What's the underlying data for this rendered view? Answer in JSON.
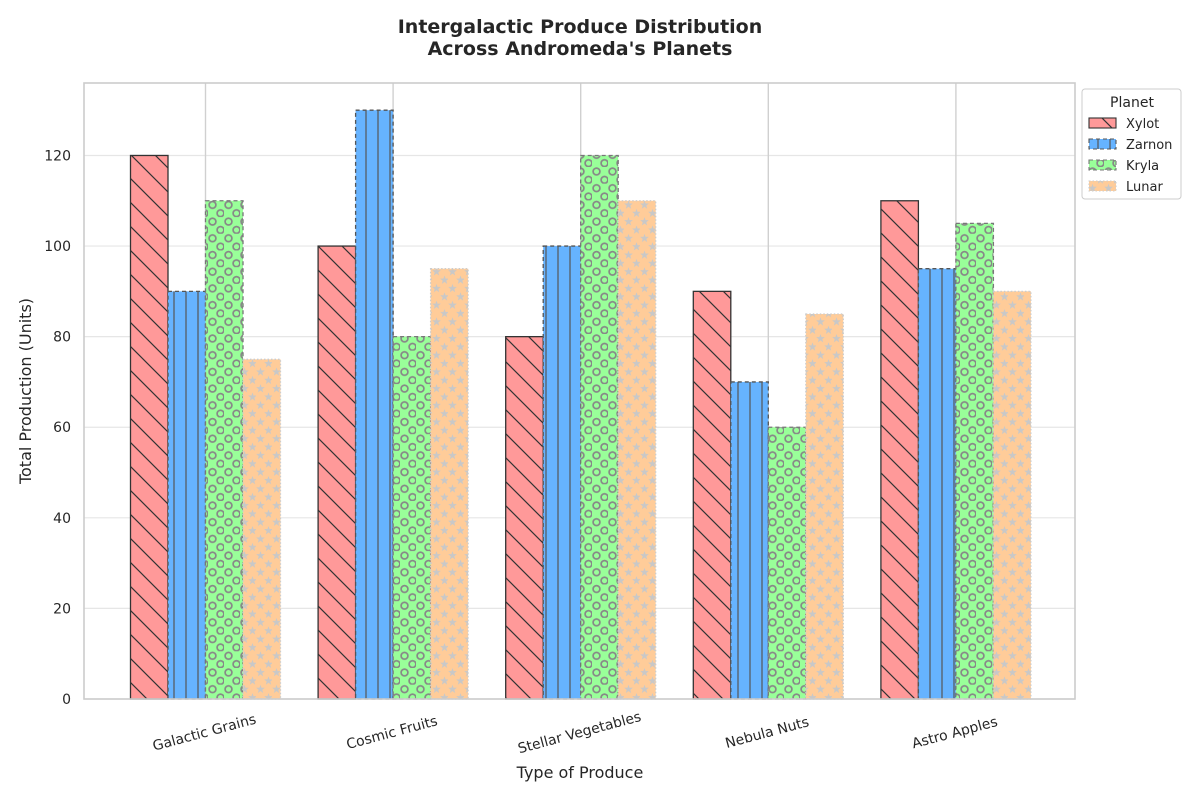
{
  "chart_data": {
    "type": "bar",
    "title_lines": [
      "Intergalactic Produce Distribution",
      "Across Andromeda's Planets"
    ],
    "xlabel": "Type of Produce",
    "ylabel": "Total Production (Units)",
    "categories": [
      "Galactic Grains",
      "Cosmic Fruits",
      "Stellar Vegetables",
      "Nebula Nuts",
      "Astro Apples"
    ],
    "ylim": [
      0,
      136
    ],
    "yticks": [
      0,
      20,
      40,
      60,
      80,
      100,
      120
    ],
    "grid": true,
    "legend": {
      "title": "Planet",
      "position": "outside-top-right"
    },
    "series": [
      {
        "name": "Xylot",
        "values": [
          120,
          100,
          80,
          90,
          110
        ],
        "color": "#ff9999",
        "hatch": "diagonal",
        "edge": "#333333",
        "edge_style": "solid"
      },
      {
        "name": "Zarnon",
        "values": [
          90,
          130,
          100,
          70,
          95
        ],
        "color": "#66b3ff",
        "hatch": "vertical",
        "edge": "#555555",
        "edge_style": "dashed"
      },
      {
        "name": "Kryla",
        "values": [
          110,
          80,
          120,
          60,
          105
        ],
        "color": "#99ff99",
        "hatch": "circles",
        "edge": "#777777",
        "edge_style": "dashed"
      },
      {
        "name": "Lunar",
        "values": [
          75,
          95,
          110,
          85,
          90
        ],
        "color": "#ffcc99",
        "hatch": "stars",
        "edge": "#cccccc",
        "edge_style": "dotted"
      }
    ]
  }
}
